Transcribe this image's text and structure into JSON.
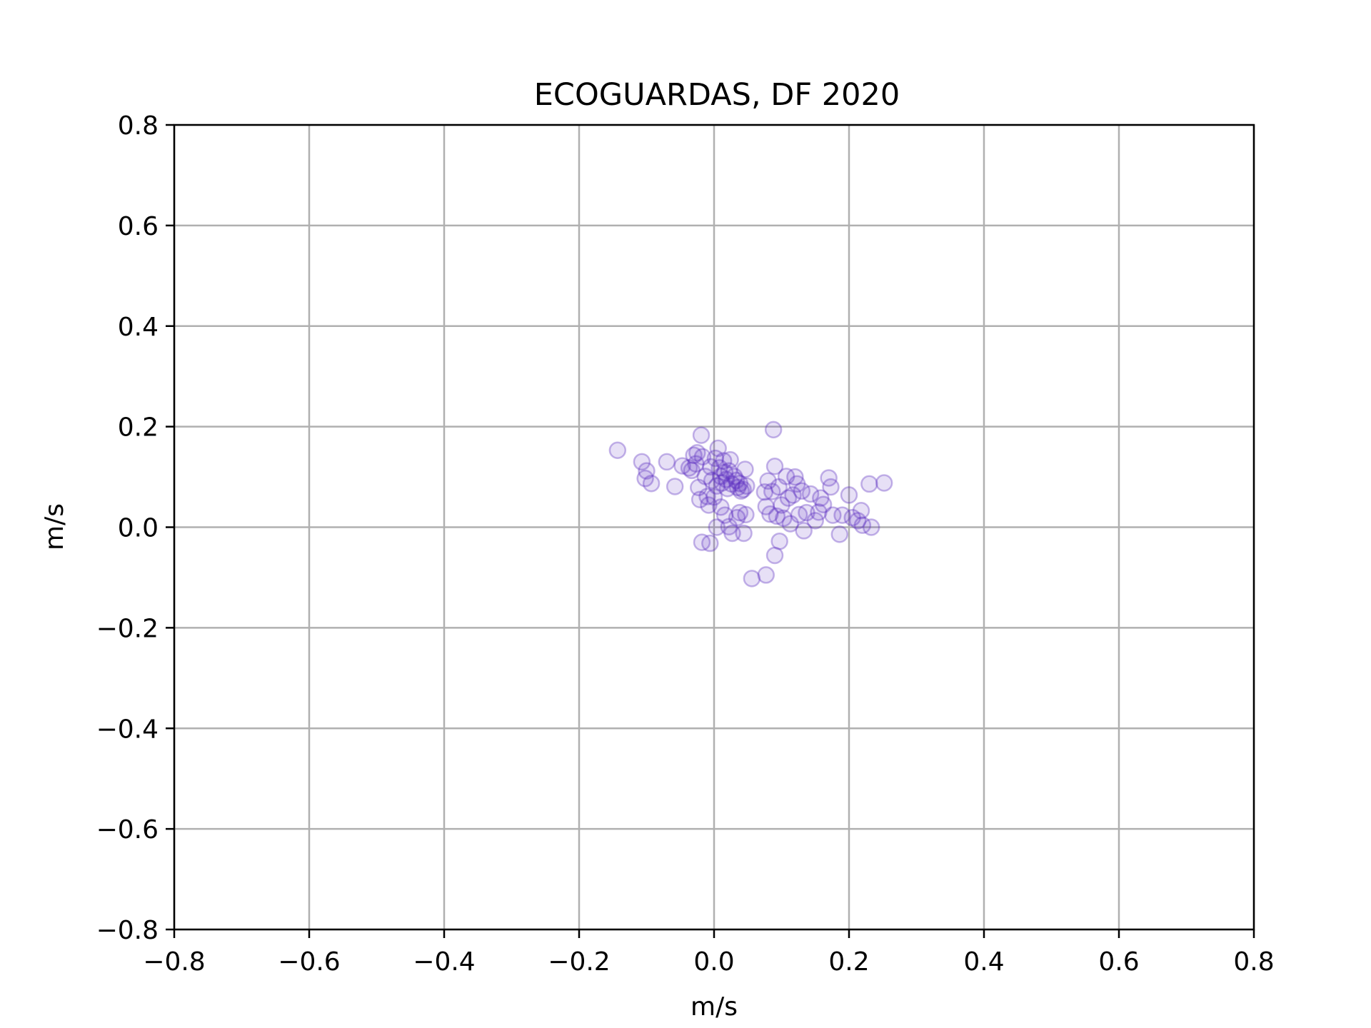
{
  "chart_data": {
    "type": "scatter",
    "title": "ECOGUARDAS, DF 2020",
    "xlabel": "m/s",
    "ylabel": "m/s",
    "xlim": [
      -0.8,
      0.8
    ],
    "ylim": [
      -0.8,
      0.8
    ],
    "xticks": [
      -0.8,
      -0.6,
      -0.4,
      -0.2,
      0.0,
      0.2,
      0.4,
      0.6,
      0.8
    ],
    "yticks": [
      -0.8,
      -0.6,
      -0.4,
      -0.2,
      0.0,
      0.2,
      0.4,
      0.6,
      0.8
    ],
    "xtick_labels": [
      "−0.8",
      "−0.6",
      "−0.4",
      "−0.2",
      "0.0",
      "0.2",
      "0.4",
      "0.6",
      "0.8"
    ],
    "ytick_labels": [
      "−0.8",
      "−0.6",
      "−0.4",
      "−0.2",
      "0.0",
      "0.2",
      "0.4",
      "0.6",
      "0.8"
    ],
    "grid": true,
    "marker": "open-circle",
    "marker_color": "#5b2fc0",
    "marker_alpha": 0.15,
    "points": [
      [
        -0.143,
        0.153
      ],
      [
        -0.107,
        0.13
      ],
      [
        -0.1,
        0.112
      ],
      [
        -0.102,
        0.097
      ],
      [
        -0.093,
        0.087
      ],
      [
        -0.07,
        0.13
      ],
      [
        -0.058,
        0.081
      ],
      [
        -0.047,
        0.122
      ],
      [
        -0.037,
        0.118
      ],
      [
        -0.033,
        0.113
      ],
      [
        -0.03,
        0.143
      ],
      [
        -0.027,
        0.126
      ],
      [
        -0.025,
        0.148
      ],
      [
        -0.023,
        0.079
      ],
      [
        -0.021,
        0.055
      ],
      [
        -0.019,
        0.183
      ],
      [
        -0.017,
        0.14
      ],
      [
        -0.013,
        0.101
      ],
      [
        -0.01,
        0.061
      ],
      [
        -0.008,
        0.044
      ],
      [
        -0.005,
        0.12
      ],
      [
        -0.003,
        0.093
      ],
      [
        0.0,
        0.06
      ],
      [
        0.002,
        0.137
      ],
      [
        0.004,
        0.082
      ],
      [
        0.006,
        0.157
      ],
      [
        0.008,
        0.118
      ],
      [
        0.01,
        0.101
      ],
      [
        0.012,
        0.088
      ],
      [
        0.014,
        0.132
      ],
      [
        0.016,
        0.109
      ],
      [
        0.018,
        0.095
      ],
      [
        0.02,
        0.077
      ],
      [
        0.022,
        0.112
      ],
      [
        0.024,
        0.134
      ],
      [
        0.026,
        0.086
      ],
      [
        0.03,
        0.101
      ],
      [
        0.033,
        0.093
      ],
      [
        0.035,
        0.079
      ],
      [
        0.038,
        0.087
      ],
      [
        0.04,
        0.072
      ],
      [
        0.043,
        0.075
      ],
      [
        0.046,
        0.115
      ],
      [
        0.048,
        0.082
      ],
      [
        0.004,
        0.0
      ],
      [
        0.01,
        0.04
      ],
      [
        0.016,
        0.024
      ],
      [
        0.022,
        0.001
      ],
      [
        0.027,
        -0.012
      ],
      [
        0.034,
        0.019
      ],
      [
        0.038,
        0.029
      ],
      [
        0.044,
        -0.012
      ],
      [
        0.047,
        0.025
      ],
      [
        -0.018,
        -0.03
      ],
      [
        -0.006,
        -0.032
      ],
      [
        0.056,
        -0.102
      ],
      [
        0.077,
        -0.095
      ],
      [
        0.09,
        -0.056
      ],
      [
        0.097,
        -0.028
      ],
      [
        0.088,
        0.194
      ],
      [
        0.075,
        0.07
      ],
      [
        0.077,
        0.041
      ],
      [
        0.08,
        0.092
      ],
      [
        0.083,
        0.026
      ],
      [
        0.086,
        0.071
      ],
      [
        0.09,
        0.121
      ],
      [
        0.093,
        0.022
      ],
      [
        0.096,
        0.08
      ],
      [
        0.1,
        0.044
      ],
      [
        0.103,
        0.018
      ],
      [
        0.107,
        0.101
      ],
      [
        0.11,
        0.058
      ],
      [
        0.113,
        0.007
      ],
      [
        0.117,
        0.064
      ],
      [
        0.12,
        0.1
      ],
      [
        0.123,
        0.086
      ],
      [
        0.126,
        0.025
      ],
      [
        0.13,
        0.072
      ],
      [
        0.133,
        -0.007
      ],
      [
        0.137,
        0.029
      ],
      [
        0.143,
        0.066
      ],
      [
        0.15,
        0.013
      ],
      [
        0.155,
        0.03
      ],
      [
        0.158,
        0.058
      ],
      [
        0.162,
        0.045
      ],
      [
        0.17,
        0.098
      ],
      [
        0.173,
        0.08
      ],
      [
        0.176,
        0.024
      ],
      [
        0.186,
        -0.014
      ],
      [
        0.19,
        0.024
      ],
      [
        0.2,
        0.064
      ],
      [
        0.205,
        0.019
      ],
      [
        0.213,
        0.013
      ],
      [
        0.218,
        0.033
      ],
      [
        0.22,
        0.004
      ],
      [
        0.23,
        0.086
      ],
      [
        0.233,
        0.0
      ],
      [
        0.252,
        0.088
      ]
    ]
  }
}
